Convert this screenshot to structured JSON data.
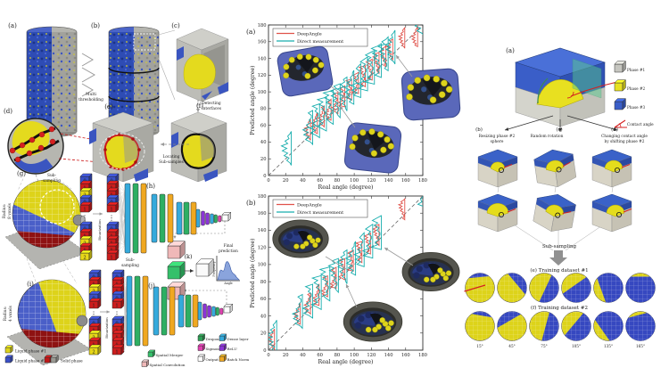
{
  "left": {
    "panels": {
      "a": "(a)",
      "b": "(b)",
      "c": "(c)",
      "d": "(d)",
      "e": "(e)",
      "f": "(f)",
      "g": "(g)",
      "h": "(h)",
      "i": "(i)",
      "j": "(j)",
      "k": "(k)"
    },
    "multi_thresholding": [
      "Multi",
      "thresholding"
    ],
    "detecting_interfaces": [
      "Detecting",
      "Interfaces"
    ],
    "locating_subsamples": [
      "Locating",
      "Sub-samples"
    ],
    "subsampling_top": [
      "Sub-",
      "sampling"
    ],
    "subsampling_bottom": [
      "Sub-",
      "sampling"
    ],
    "radius_8": [
      "Radius:",
      "8 voxels"
    ],
    "radius_4": [
      "Radius:",
      "4 voxels"
    ],
    "binarization": "Binarization",
    "final_prediction": [
      "Final",
      "prediction"
    ],
    "hist_axes": {
      "x": "Angle",
      "y": "Frequency"
    },
    "stack_digits": {
      "g1_top": [
        "0",
        "1",
        "2",
        "0",
        "1"
      ],
      "g1_bot": [
        "0",
        "1",
        "2",
        "1",
        "2"
      ],
      "g2_top": [
        "0",
        "1",
        "1",
        "0",
        "1"
      ],
      "g2_bot": [
        "0",
        "1",
        "1",
        "1",
        "1"
      ],
      "i1_top": [
        "0",
        "1",
        "2",
        "0",
        "1"
      ],
      "i1_bot": [
        "0",
        "1",
        "2",
        "1",
        "2"
      ],
      "i2_top": [
        "0",
        "1",
        "1",
        "0",
        "1"
      ],
      "i2_bot": [
        "0",
        "1",
        "1",
        "1",
        "1"
      ]
    },
    "phase_legend": [
      {
        "label": "Liquid phase #1",
        "color": "#ddd31a"
      },
      {
        "label": "Liquid phase #2",
        "color": "#3a50c8"
      },
      {
        "label": "Solid phase",
        "color": "#c01818",
        "color2": "#9a9a94"
      }
    ],
    "nn_legend": [
      {
        "label": "Spatial Merger",
        "color": "#35c06a"
      },
      {
        "label": "Spatial Convolution",
        "color": "#f0b8b8"
      },
      {
        "label": "Dropout",
        "color": "#2e9e54"
      },
      {
        "label": "Dense layer",
        "color": "#35aadc"
      },
      {
        "label": "Sigmoid",
        "color": "#e040b0"
      },
      {
        "label": "ReLU",
        "color": "#8b35d6"
      },
      {
        "label": "Output",
        "color": "#ffffff"
      },
      {
        "label": "Batch Norm",
        "color": "#f0a820"
      }
    ]
  },
  "chart_data": [
    {
      "type": "scatter",
      "panel": "(a)",
      "title": "",
      "xlabel": "Real angle (degree)",
      "ylabel": "Predicted angle (degree)",
      "xlim": [
        0,
        180
      ],
      "ylim": [
        0,
        180
      ],
      "xticks": [
        0,
        20,
        40,
        60,
        80,
        100,
        120,
        140,
        160,
        180
      ],
      "yticks": [
        0,
        20,
        40,
        60,
        80,
        100,
        120,
        140,
        160,
        180
      ],
      "grid": false,
      "legend_position": "top-left",
      "legend": [
        {
          "label": "DeepAngle",
          "color": "#e0524a"
        },
        {
          "label": "Direct measurement",
          "color": "#18aeae"
        }
      ],
      "reference_line": "1:1 dashed identity line",
      "distributions_deg": {
        "deepangle": [
          50,
          58,
          66,
          74,
          82,
          90,
          98,
          106,
          114,
          122,
          130,
          138,
          146,
          160,
          175
        ],
        "direct": [
          25,
          50,
          58,
          66,
          74,
          82,
          90,
          98,
          106,
          114,
          122,
          130,
          138,
          146,
          180
        ]
      },
      "description": "Half-violin distributions of predicted contact angle vs real angle for porous-rock sub-samples"
    },
    {
      "type": "scatter",
      "panel": "(b)",
      "title": "",
      "xlabel": "Real angle (degree)",
      "ylabel": "Predicted angle (degree)",
      "xlim": [
        0,
        180
      ],
      "ylim": [
        0,
        180
      ],
      "xticks": [
        0,
        20,
        40,
        60,
        80,
        100,
        120,
        140,
        160,
        180
      ],
      "yticks": [
        0,
        20,
        40,
        60,
        80,
        100,
        120,
        140,
        160,
        180
      ],
      "grid": false,
      "legend_position": "top-left",
      "legend": [
        {
          "label": "DeepAngle",
          "color": "#e0524a"
        },
        {
          "label": "Direct measurement",
          "color": "#18aeae"
        }
      ],
      "reference_line": "1:1 dashed identity line",
      "distributions_deg": {
        "deepangle": [
          8,
          38,
          50,
          60,
          70,
          80,
          90,
          100,
          110,
          120,
          130,
          160
        ],
        "direct": [
          8,
          38,
          50,
          60,
          70,
          80,
          90,
          100,
          110,
          120,
          130,
          180
        ]
      },
      "description": "Half-violin distributions of predicted contact angle vs real angle for bead-pack samples"
    }
  ],
  "right": {
    "panel_a": "(a)",
    "legend": [
      {
        "label": "Phase #1",
        "color": "#c6c6c0",
        "icon": "cube"
      },
      {
        "label": "Phase #2",
        "color": "#e8e020",
        "icon": "cube"
      },
      {
        "label": "Phase #3",
        "color": "#3a5ec8",
        "icon": "cube"
      },
      {
        "label": "Contact angle",
        "color": "#d42020",
        "icon": "angle"
      }
    ],
    "augmentations": [
      {
        "panel": "(b)",
        "caption": [
          "Resizing phase #2",
          "sphere"
        ]
      },
      {
        "panel": "(c)",
        "caption": [
          "Random rotation"
        ]
      },
      {
        "panel": "(d)",
        "caption": [
          "Changing contact angle",
          "by shifting phase #2"
        ]
      }
    ],
    "subsampling": "Sub-sampling",
    "dataset1": "(e) Training dataset #1",
    "dataset2": "(f) Training dataset #2",
    "angles": [
      "15°",
      "45°",
      "75°",
      "105°",
      "135°",
      "165°"
    ]
  }
}
